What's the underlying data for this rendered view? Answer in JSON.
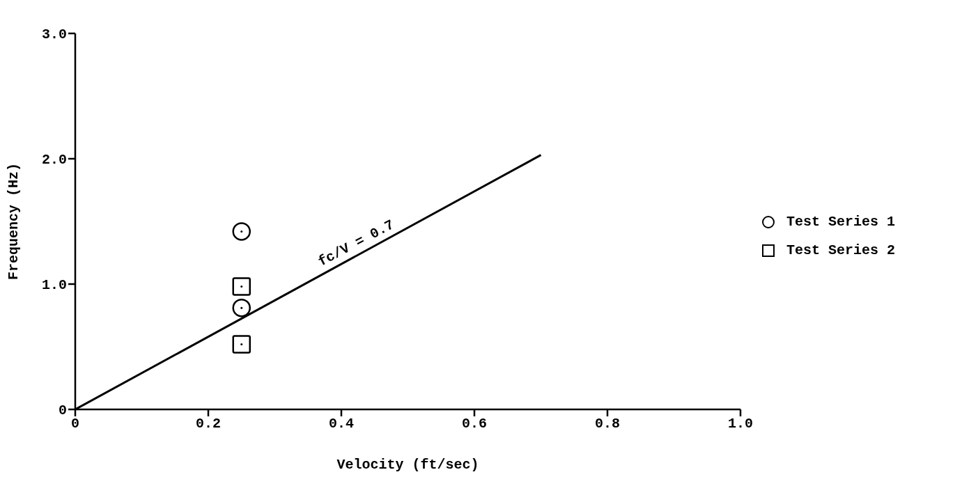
{
  "chart_data": {
    "type": "scatter",
    "xlabel": "Velocity  (ft/sec)",
    "ylabel": "Frequency  (Hz)",
    "xlim": [
      0,
      1
    ],
    "ylim": [
      0,
      3
    ],
    "xticks": [
      {
        "value": 0,
        "label": "0"
      },
      0.2,
      0.4,
      0.6,
      0.8,
      {
        "value": 1,
        "label": "1.0"
      }
    ],
    "yticks": [
      {
        "value": 0,
        "label": "0"
      },
      {
        "value": 1,
        "label": "1.0"
      },
      {
        "value": 2,
        "label": "2.0"
      },
      {
        "value": 3,
        "label": "3.0"
      }
    ],
    "grid": false,
    "legend": "right",
    "series": [
      {
        "name": "Test Series 1",
        "marker": "circle",
        "color": "#000000",
        "x": [
          0.25,
          0.25
        ],
        "values": [
          1.42,
          0.81
        ]
      },
      {
        "name": "Test Series 2",
        "marker": "square",
        "color": "#000000",
        "x": [
          0.25,
          0.25
        ],
        "values": [
          0.98,
          0.52
        ]
      },
      {
        "type": "line",
        "marker": "none",
        "line_style": "solid",
        "color": "#000000",
        "x": [
          0,
          0.7
        ],
        "values": [
          0,
          2.03
        ]
      }
    ],
    "annotations": [
      {
        "text": "fc/V = 0.7",
        "x": 0.43,
        "y": 1.25
      }
    ]
  }
}
